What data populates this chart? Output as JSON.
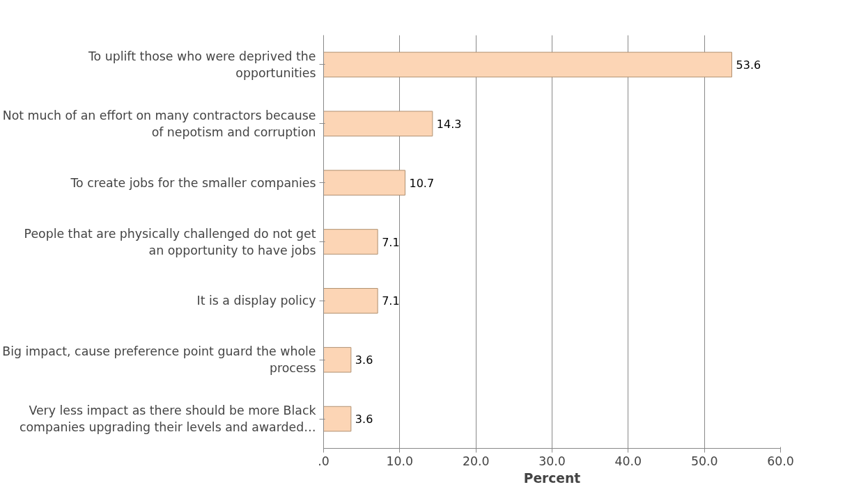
{
  "chart_data": {
    "type": "bar",
    "orientation": "horizontal",
    "xlabel": "Percent",
    "categories": [
      "To uplift those who were deprived the opportunities",
      "Not much of an effort on many contractors because of nepotism and corruption",
      "To create jobs for the smaller companies",
      "People that are physically challenged do not get an opportunity to have jobs",
      "It is a display policy",
      "Big impact, cause preference point guard the whole process",
      "Very less impact as there should be more Black companies upgrading their levels and awarded…"
    ],
    "values": [
      53.6,
      14.3,
      10.7,
      7.1,
      7.1,
      3.6,
      3.6
    ],
    "color": "#fcd5b5",
    "xlim": [
      0,
      60
    ],
    "xticks": [
      {
        "value": 0,
        "label": ".0"
      },
      {
        "value": 10,
        "label": "10.0"
      },
      {
        "value": 20,
        "label": "20.0"
      },
      {
        "value": 30,
        "label": "30.0"
      },
      {
        "value": 40,
        "label": "40.0"
      },
      {
        "value": 50,
        "label": "50.0"
      },
      {
        "value": 60,
        "label": "60.0"
      }
    ],
    "grid": "x",
    "data_labels": true
  }
}
